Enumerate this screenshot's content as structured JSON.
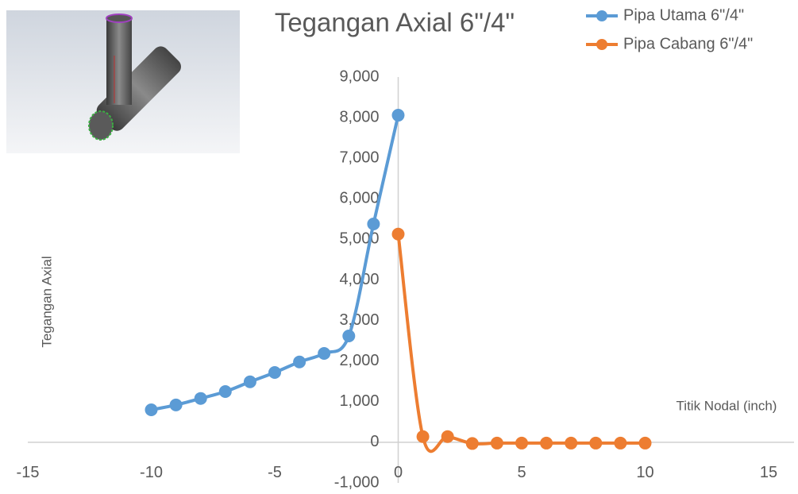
{
  "chart_data": {
    "type": "scatter-smooth",
    "title": "Tegangan Axial 6\"/4\"",
    "x_label": "Titik Nodal (inch)",
    "y_label": "Tegangan Axial",
    "xlim": [
      -15,
      15
    ],
    "xticks": [
      -15,
      -10,
      -5,
      0,
      5,
      10,
      15
    ],
    "ylim": [
      -1000,
      9000
    ],
    "yticks": [
      {
        "value": -1000,
        "label": "-1,000"
      },
      0,
      {
        "value": 1000,
        "label": "1,000"
      },
      {
        "value": 2000,
        "label": "2,000"
      },
      {
        "value": 3000,
        "label": "3,000"
      },
      {
        "value": 4000,
        "label": "4,000"
      },
      {
        "value": 5000,
        "label": "5,000"
      },
      {
        "value": 6000,
        "label": "6,000"
      },
      {
        "value": 7000,
        "label": "7,000"
      },
      {
        "value": 8000,
        "label": "8,000"
      },
      {
        "value": 9000,
        "label": "9,000"
      }
    ],
    "grid": false,
    "legend": "top-right",
    "series": [
      {
        "name": "Pipa Utama 6\"/4\"",
        "color": "#5b9bd5",
        "x": [
          -10,
          -9,
          -8,
          -7,
          -6,
          -5,
          -4,
          -3,
          -2,
          -1,
          0
        ],
        "values": [
          800,
          920,
          1080,
          1250,
          1490,
          1720,
          1980,
          2190,
          2620,
          5380,
          8060
        ]
      },
      {
        "name": "Pipa Cabang 6\"/4\"",
        "color": "#ed7d31",
        "x": [
          0,
          1,
          2,
          3,
          4,
          5,
          6,
          7,
          8,
          9,
          10
        ],
        "values": [
          5130,
          140,
          140,
          -30,
          -20,
          -20,
          -20,
          -20,
          -20,
          -20,
          -20
        ]
      }
    ]
  }
}
